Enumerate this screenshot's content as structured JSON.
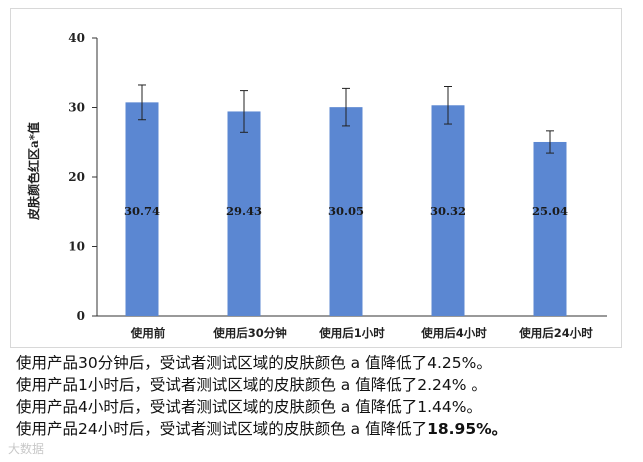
{
  "chart_data": {
    "type": "bar",
    "ylabel": "皮肤颜色红区a*值",
    "ylim": [
      0,
      40
    ],
    "yticks": [
      0,
      10,
      20,
      30,
      40
    ],
    "categories": [
      "使用前",
      "使用后30分钟",
      "使用后1小时",
      "使用后4小时",
      "使用后24小时"
    ],
    "values": [
      30.74,
      29.43,
      30.05,
      30.32,
      25.04
    ],
    "value_labels": [
      "30.74",
      "29.43",
      "30.05",
      "30.32",
      "25.04"
    ],
    "error": [
      2.5,
      3.0,
      2.7,
      2.7,
      1.6
    ],
    "bar_color": "#5b87d2",
    "grid": false
  },
  "caption": {
    "lines": [
      {
        "text": "使用产品30分钟后，受试者测试区域的皮肤颜色 a 值降低了4.25%。",
        "bold": ""
      },
      {
        "text": "使用产品1小时后，受试者测试区域的皮肤颜色 a 值降低了2.24% 。",
        "bold": ""
      },
      {
        "text": "使用产品4小时后，受试者测试区域的皮肤颜色 a 值降低了1.44%。",
        "bold": ""
      },
      {
        "text": "使用产品24小时后，受试者测试区域的皮肤颜色 a 值降低了",
        "bold": "18.95%。"
      }
    ]
  },
  "watermark": "大数据"
}
